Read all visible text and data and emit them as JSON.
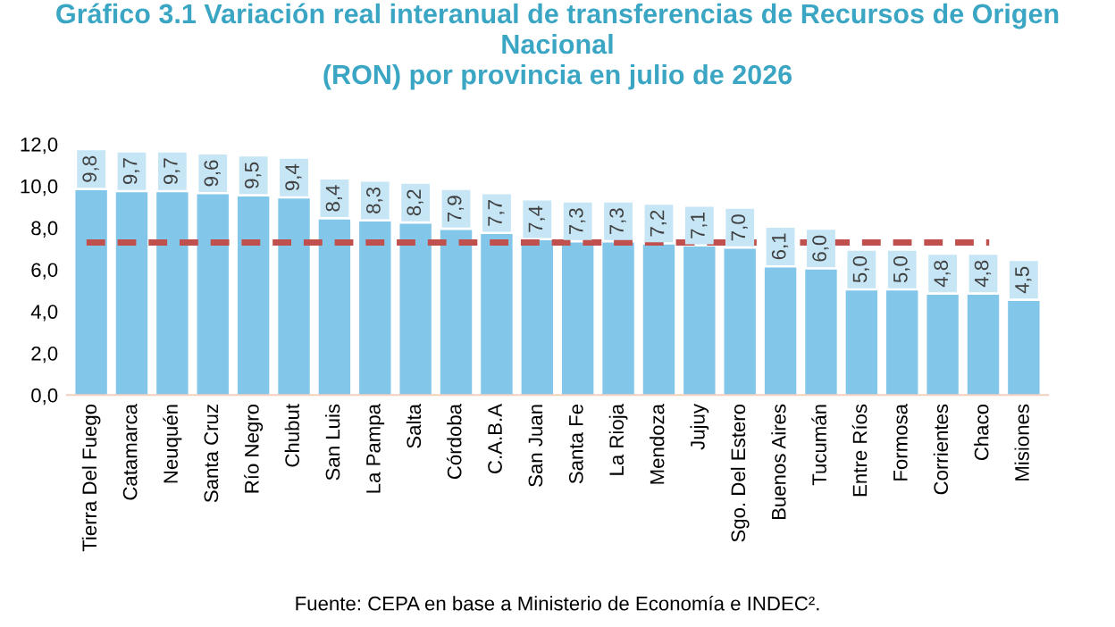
{
  "chart_data": {
    "type": "bar",
    "title": "Gráfico 3.1 Variación real interanual de transferencias de Recursos de Origen\nNacional\n(RON) por provincia en julio de 2026",
    "categories": [
      "Tierra Del Fuego",
      "Catamarca",
      "Neuquén",
      "Santa Cruz",
      "Río Negro",
      "Chubut",
      "San Luis",
      "La Pampa",
      "Salta",
      "Córdoba",
      "C.A.B.A",
      "San Juan",
      "Santa Fe",
      "La Rioja",
      "Mendoza",
      "Jujuy",
      "Sgo. Del Estero",
      "Buenos Aires",
      "Tucumán",
      "Entre Ríos",
      "Formosa",
      "Corrientes",
      "Chaco",
      "Misiones"
    ],
    "values": [
      9.8,
      9.7,
      9.7,
      9.6,
      9.5,
      9.4,
      8.4,
      8.3,
      8.2,
      7.9,
      7.7,
      7.4,
      7.3,
      7.3,
      7.2,
      7.1,
      7.0,
      6.1,
      6.0,
      5.0,
      5.0,
      4.8,
      4.8,
      4.5
    ],
    "value_labels": [
      "9,8",
      "9,7",
      "9,7",
      "9,6",
      "9,5",
      "9,4",
      "8,4",
      "8,3",
      "8,2",
      "7,9",
      "7,7",
      "7,4",
      "7,3",
      "7,3",
      "7,2",
      "7,1",
      "7,0",
      "6,1",
      "6,0",
      "5,0",
      "5,0",
      "4,8",
      "4,8",
      "4,5"
    ],
    "color": "#82c6ea",
    "ylim": [
      0,
      12
    ],
    "yticks": [
      {
        "value": 0,
        "label": "0,0"
      },
      {
        "value": 2,
        "label": "2,0"
      },
      {
        "value": 4,
        "label": "4,0"
      },
      {
        "value": 6,
        "label": "6,0"
      },
      {
        "value": 8,
        "label": "8,0"
      },
      {
        "value": 10,
        "label": "10,0"
      },
      {
        "value": 12,
        "label": "12,0"
      }
    ],
    "grid": false,
    "ref_lines": [
      {
        "axis": "y",
        "value": 7.3,
        "color": "#c0504d",
        "line_style": "dashed"
      }
    ],
    "annotations": [
      "Fuente: CEPA en base a Ministerio de Economía e INDEC²."
    ]
  }
}
